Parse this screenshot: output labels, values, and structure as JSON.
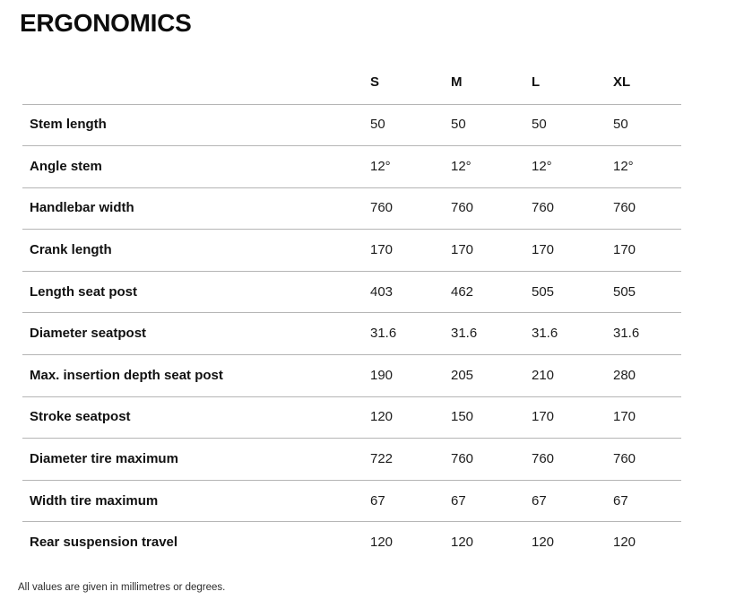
{
  "page": {
    "title": "ERGONOMICS",
    "footnote": "All values are given in millimetres or degrees."
  },
  "table": {
    "size_headers": [
      "S",
      "M",
      "L",
      "XL"
    ],
    "rows": [
      {
        "label": "Stem length",
        "values": [
          "50",
          "50",
          "50",
          "50"
        ]
      },
      {
        "label": "Angle stem",
        "values": [
          "12°",
          "12°",
          "12°",
          "12°"
        ]
      },
      {
        "label": "Handlebar width",
        "values": [
          "760",
          "760",
          "760",
          "760"
        ]
      },
      {
        "label": "Crank length",
        "values": [
          "170",
          "170",
          "170",
          "170"
        ]
      },
      {
        "label": "Length seat post",
        "values": [
          "403",
          "462",
          "505",
          "505"
        ]
      },
      {
        "label": "Diameter seatpost",
        "values": [
          "31.6",
          "31.6",
          "31.6",
          "31.6"
        ]
      },
      {
        "label": "Max. insertion depth seat post",
        "values": [
          "190",
          "205",
          "210",
          "280"
        ]
      },
      {
        "label": "Stroke seatpost",
        "values": [
          "120",
          "150",
          "170",
          "170"
        ]
      },
      {
        "label": "Diameter tire maximum",
        "values": [
          "722",
          "760",
          "760",
          "760"
        ]
      },
      {
        "label": "Width tire maximum",
        "values": [
          "67",
          "67",
          "67",
          "67"
        ]
      },
      {
        "label": "Rear suspension travel",
        "values": [
          "120",
          "120",
          "120",
          "120"
        ]
      }
    ]
  },
  "colors": {
    "background": "#ffffff",
    "text": "#111111",
    "divider": "#b5b5b5"
  }
}
